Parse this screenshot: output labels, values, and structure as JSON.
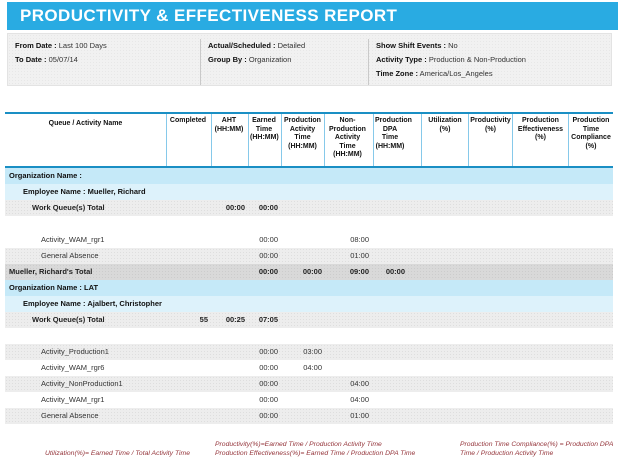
{
  "title": "PRODUCTIVITY & EFFECTIVENESS REPORT",
  "colors": {
    "accent": "#29abe2",
    "line": "#1a8fc4",
    "band-org": "#c5e9f8",
    "band-emp": "#ddf2fb",
    "footer": "#94343a"
  },
  "info_columns": [
    [
      {
        "label": "From Date :",
        "value": "Last 100 Days"
      },
      {
        "label": "To Date :",
        "value": "05/07/14"
      }
    ],
    [
      {
        "label": "Actual/Scheduled :",
        "value": "Detailed"
      },
      {
        "label": "Group By :",
        "value": "Organization"
      }
    ],
    [
      {
        "label": "Show Shift Events :",
        "value": "No"
      },
      {
        "label": "Activity Type :",
        "value": "Production & Non-Production"
      },
      {
        "label": "Time Zone :",
        "value": "America/Los_Angeles"
      }
    ]
  ],
  "table": {
    "columns": [
      {
        "key": "name",
        "label": "Queue / Activity Name",
        "sub": ""
      },
      {
        "key": "completed",
        "label": "Completed",
        "sub": ""
      },
      {
        "key": "aht",
        "label": "AHT",
        "sub": "(HH:MM)"
      },
      {
        "key": "earned",
        "label": "Earned Time",
        "sub": "(HH:MM)"
      },
      {
        "key": "prod",
        "label": "Production Activity Time",
        "sub": "(HH:MM)"
      },
      {
        "key": "nonprod",
        "label": "Non-Production Activity Time",
        "sub": "(HH:MM)"
      },
      {
        "key": "dpa",
        "label": "Production DPA Time",
        "sub": "(HH:MM)"
      },
      {
        "key": "util",
        "label": "Utilization",
        "sub": "(%)"
      },
      {
        "key": "prodpct",
        "label": "Productivity",
        "sub": "(%)"
      },
      {
        "key": "effect",
        "label": "Production Effectiveness",
        "sub": "(%)"
      },
      {
        "key": "compliance",
        "label": "Production Time Compliance",
        "sub": "(%)"
      }
    ],
    "rows": [
      {
        "kind": "org",
        "label": "Organization Name :"
      },
      {
        "kind": "employee",
        "label": "Employee Name : Mueller, Richard"
      },
      {
        "kind": "wq-total",
        "label": "Work Queue(s) Total",
        "values": {
          "aht": "00:00",
          "earned": "00:00"
        }
      },
      {
        "kind": "spacer"
      },
      {
        "kind": "activity",
        "alt": false,
        "label": "Activity_WAM_rgr1",
        "values": {
          "earned": "00:00",
          "nonprod": "08:00"
        }
      },
      {
        "kind": "activity",
        "alt": true,
        "label": "General Absence",
        "values": {
          "earned": "00:00",
          "nonprod": "01:00"
        }
      },
      {
        "kind": "emp-total",
        "label": "Mueller, Richard's Total",
        "values": {
          "earned": "00:00",
          "prod": "00:00",
          "nonprod": "09:00",
          "dpa": "00:00"
        }
      },
      {
        "kind": "org",
        "label": "Organization Name : LAT"
      },
      {
        "kind": "employee",
        "label": "Employee Name : Ajalbert, Christopher"
      },
      {
        "kind": "wq-total",
        "label": "Work Queue(s) Total",
        "values": {
          "completed": "55",
          "aht": "00:25",
          "earned": "07:05"
        }
      },
      {
        "kind": "spacer"
      },
      {
        "kind": "activity",
        "alt": true,
        "label": "Activity_Production1",
        "values": {
          "earned": "00:00",
          "prod": "03:00"
        }
      },
      {
        "kind": "activity",
        "alt": false,
        "label": "Activity_WAM_rgr6",
        "values": {
          "earned": "00:00",
          "prod": "04:00"
        }
      },
      {
        "kind": "activity",
        "alt": true,
        "label": "Activity_NonProduction1",
        "values": {
          "earned": "00:00",
          "nonprod": "04:00"
        }
      },
      {
        "kind": "activity",
        "alt": false,
        "label": "Activity_WAM_rgr1",
        "values": {
          "earned": "00:00",
          "nonprod": "04:00"
        }
      },
      {
        "kind": "activity",
        "alt": true,
        "label": "General Absence",
        "values": {
          "earned": "00:00",
          "nonprod": "01:00"
        }
      }
    ]
  },
  "footer": {
    "formulas": [
      "Utilization(%)= Earned Time / Total Activity Time",
      "Productivity(%)=Earned Time / Production Activity Time",
      "Production Effectiveness(%)= Earned Time / Production DPA Time",
      "Production Time Compliance(%) = Production DPA Time / Production Activity Time"
    ]
  }
}
